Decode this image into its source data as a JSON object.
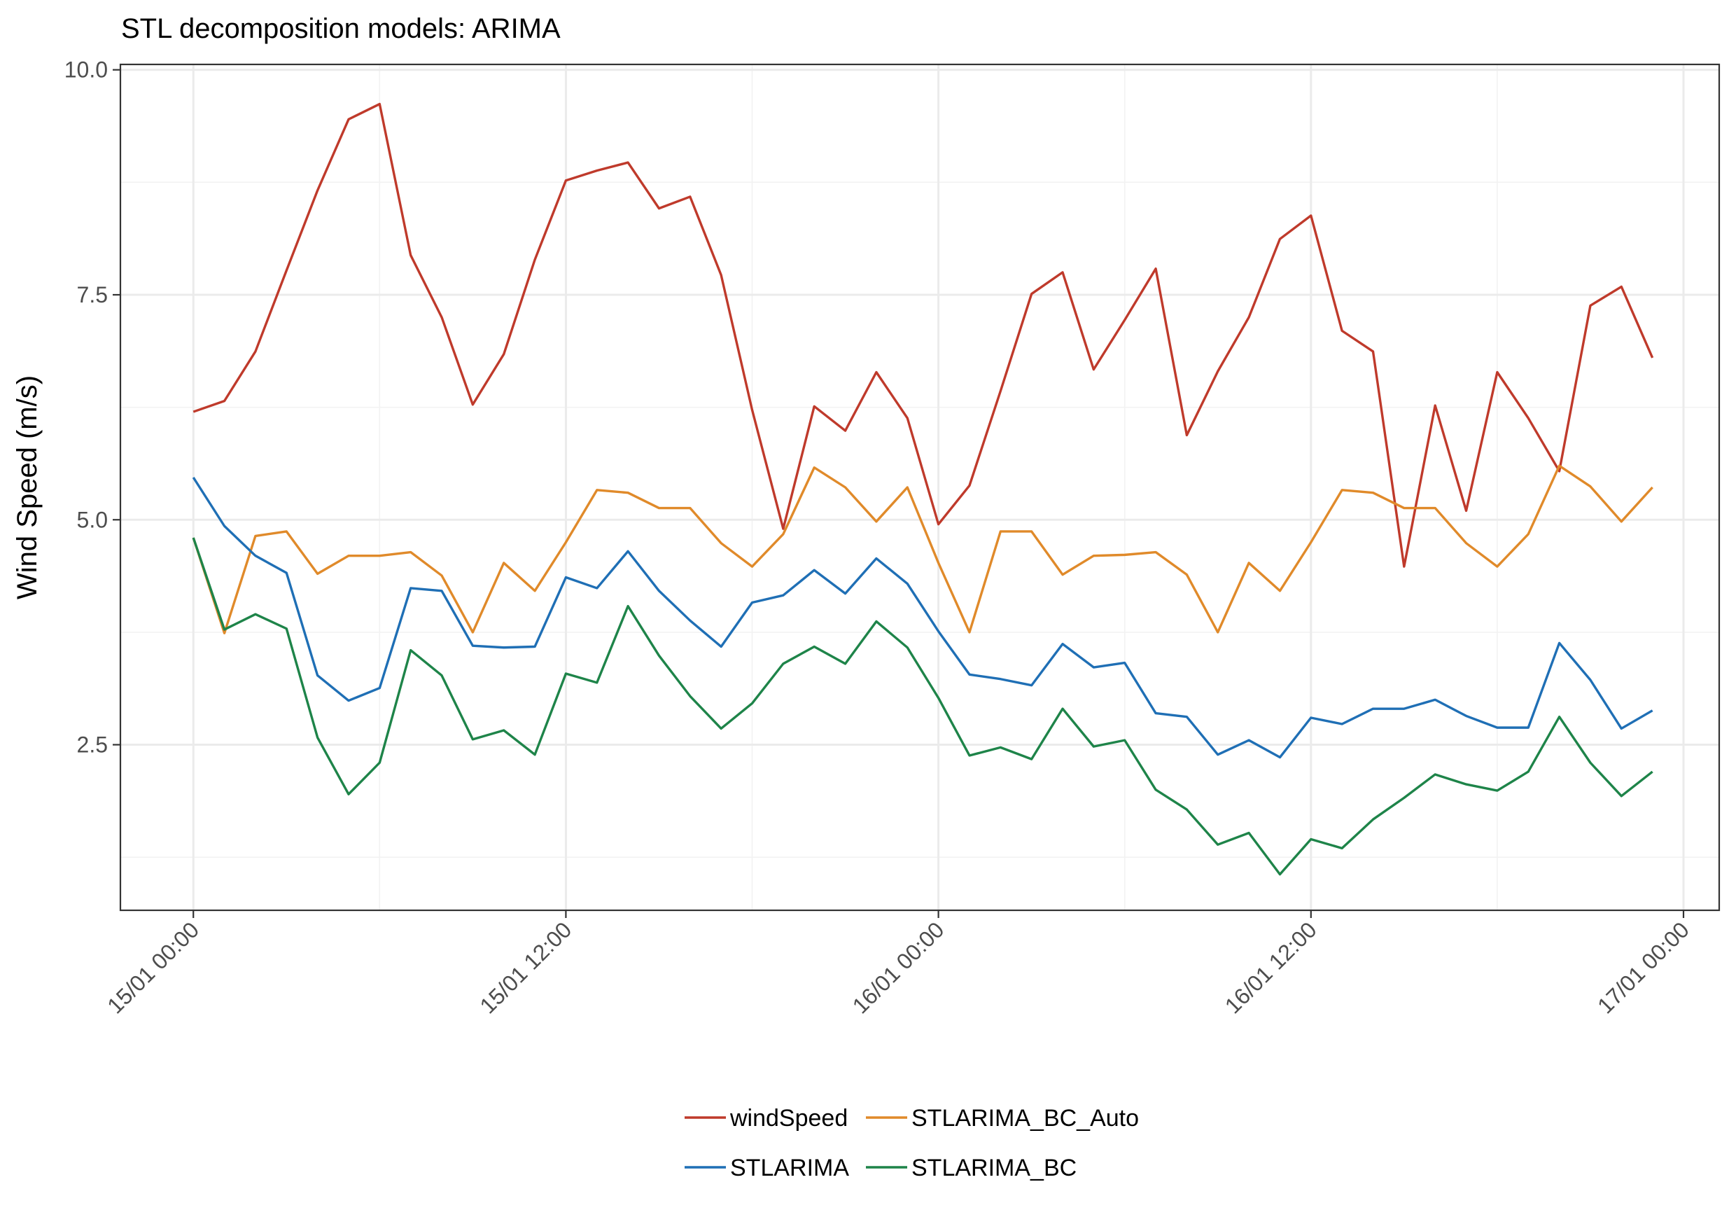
{
  "chart_data": {
    "type": "line",
    "title": "STL decomposition models: ARIMA",
    "xlabel": "",
    "ylabel": "Wind Speed (m/s)",
    "x_unit": "hours since 15/01 00:00",
    "x": [
      0,
      1,
      2,
      3,
      4,
      5,
      6,
      7,
      8,
      9,
      10,
      11,
      12,
      13,
      14,
      15,
      16,
      17,
      18,
      19,
      20,
      21,
      22,
      23,
      24,
      25,
      26,
      27,
      28,
      29,
      30,
      31,
      32,
      33,
      34,
      35,
      36,
      37,
      38,
      39,
      40,
      41,
      42,
      43,
      44,
      45,
      46,
      47
    ],
    "xlim": [
      -2.35,
      49.15
    ],
    "ylim": [
      0.66,
      10.06
    ],
    "xticks": [
      {
        "value": 0,
        "label": "15/01 00:00"
      },
      {
        "value": 12,
        "label": "15/01 12:00"
      },
      {
        "value": 24,
        "label": "16/01 00:00"
      },
      {
        "value": 36,
        "label": "16/01 12:00"
      },
      {
        "value": 48,
        "label": "17/01 00:00"
      }
    ],
    "yticks": [
      {
        "value": 2.5,
        "label": "2.5"
      },
      {
        "value": 5.0,
        "label": "5.0"
      },
      {
        "value": 7.5,
        "label": "7.5"
      },
      {
        "value": 10.0,
        "label": "10.0"
      }
    ],
    "x_minor": [
      6,
      18,
      30,
      42
    ],
    "y_minor": [
      1.25,
      3.75,
      6.25,
      8.75
    ],
    "grid": true,
    "legend_position": "bottom",
    "series": [
      {
        "name": "windSpeed",
        "color": "#bf3a2b",
        "values": [
          6.2,
          6.32,
          6.87,
          7.77,
          8.66,
          9.45,
          9.62,
          7.94,
          7.25,
          6.28,
          6.84,
          7.89,
          8.77,
          8.88,
          8.97,
          8.46,
          8.59,
          7.72,
          6.22,
          4.9,
          6.26,
          5.99,
          6.64,
          6.13,
          4.95,
          5.38,
          6.43,
          7.51,
          7.75,
          6.67,
          7.22,
          7.79,
          5.94,
          6.65,
          7.25,
          8.12,
          8.38,
          7.1,
          6.87,
          4.48,
          6.27,
          5.1,
          6.64,
          6.13,
          5.54,
          7.38,
          7.59,
          6.8
        ]
      },
      {
        "name": "STLARIMA_BC_Auto",
        "color": "#e08a2a",
        "values": [
          4.8,
          3.74,
          4.82,
          4.87,
          4.4,
          4.6,
          4.6,
          4.64,
          4.38,
          3.75,
          4.52,
          4.21,
          4.75,
          5.33,
          5.3,
          5.13,
          5.13,
          4.74,
          4.48,
          4.84,
          5.58,
          5.36,
          4.98,
          5.36,
          4.52,
          3.75,
          4.87,
          4.87,
          4.39,
          4.6,
          4.61,
          4.64,
          4.39,
          3.75,
          4.52,
          4.21,
          4.75,
          5.33,
          5.3,
          5.13,
          5.13,
          4.74,
          4.48,
          4.84,
          5.6,
          5.37,
          4.98,
          5.36
        ]
      },
      {
        "name": "STLARIMA",
        "color": "#1f6fb5",
        "values": [
          5.47,
          4.93,
          4.6,
          4.41,
          3.27,
          2.99,
          3.13,
          4.24,
          4.21,
          3.6,
          3.58,
          3.59,
          4.36,
          4.24,
          4.65,
          4.21,
          3.88,
          3.59,
          4.08,
          4.16,
          4.44,
          4.18,
          4.57,
          4.29,
          3.76,
          3.28,
          3.23,
          3.16,
          3.62,
          3.36,
          3.41,
          2.85,
          2.81,
          2.39,
          2.55,
          2.36,
          2.8,
          2.73,
          2.9,
          2.9,
          3.0,
          2.82,
          2.69,
          2.69,
          3.63,
          3.22,
          2.68,
          2.88
        ]
      },
      {
        "name": "STLARIMA_BC",
        "color": "#1e8449",
        "values": [
          4.8,
          3.78,
          3.95,
          3.79,
          2.58,
          1.95,
          2.3,
          3.55,
          3.27,
          2.56,
          2.66,
          2.39,
          3.29,
          3.19,
          4.04,
          3.49,
          3.04,
          2.68,
          2.96,
          3.4,
          3.59,
          3.4,
          3.87,
          3.58,
          3.02,
          2.38,
          2.47,
          2.34,
          2.9,
          2.48,
          2.55,
          2.0,
          1.78,
          1.39,
          1.52,
          1.06,
          1.45,
          1.35,
          1.67,
          1.91,
          2.17,
          2.06,
          1.99,
          2.2,
          2.81,
          2.3,
          1.93,
          2.2
        ]
      }
    ]
  }
}
